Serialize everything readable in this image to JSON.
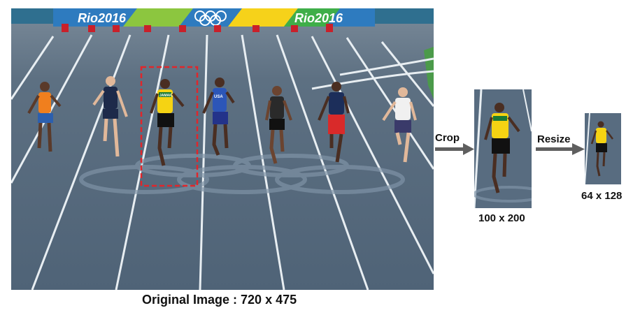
{
  "original": {
    "caption": "Original Image : 720 x 475",
    "banner_texts": [
      "Rio2016",
      "Rio2016"
    ],
    "bib_texts": [
      "JAMAICA",
      "USA"
    ]
  },
  "crop": {
    "arrow_label": "Crop",
    "size_label": "100 x 200"
  },
  "resize": {
    "arrow_label": "Resize",
    "size_label": "64 x 128"
  },
  "colors": {
    "track": "#52667a",
    "lane_line": "#e8eef2",
    "crop_box": "#e0262b",
    "arrow": "#5f5f5f",
    "jamaica_yellow": "#f5d313"
  }
}
